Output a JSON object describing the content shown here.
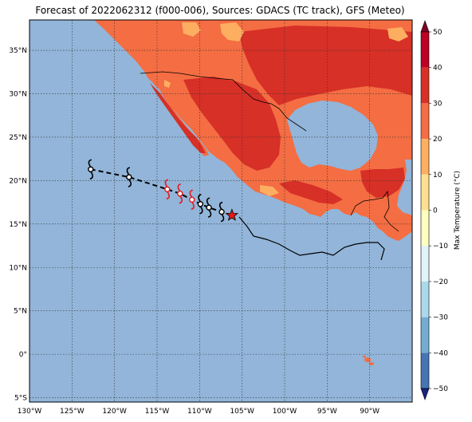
{
  "title": "Forecast of 2022062312 (f000-006), Sources: GDACS (TC track), GFS (Meteo)",
  "map": {
    "lon_range": [
      -130,
      -85
    ],
    "lat_range": [
      -5.5,
      38.5
    ],
    "lon_ticks": [
      -130,
      -125,
      -120,
      -115,
      -110,
      -105,
      -100,
      -95,
      -90
    ],
    "lon_tick_labels": [
      "130°W",
      "125°W",
      "120°W",
      "115°W",
      "110°W",
      "105°W",
      "100°W",
      "95°W",
      "90°W"
    ],
    "lat_ticks": [
      -5,
      0,
      5,
      10,
      15,
      20,
      25,
      30,
      35
    ],
    "lat_tick_labels": [
      "5°S",
      "0°",
      "5°N",
      "10°N",
      "15°N",
      "20°N",
      "25°N",
      "30°N",
      "35°N"
    ],
    "gridlines": true,
    "ocean_color": "#92b5d9"
  },
  "colorbar": {
    "label": "Max Temperature (°C)",
    "ticks": [
      50,
      40,
      30,
      20,
      10,
      0,
      -10,
      -20,
      -30,
      -40,
      -50
    ],
    "tick_labels": [
      "50",
      "40",
      "30",
      "20",
      "10",
      "0",
      "−10",
      "−20",
      "−30",
      "−40",
      "−50"
    ],
    "colors_top_to_bottom": [
      "#800026",
      "#bd0026",
      "#d73027",
      "#f46d43",
      "#fdae61",
      "#fee090",
      "#ffffbf",
      "#e0f3f8",
      "#abd9e9",
      "#74add1",
      "#4575b4",
      "#313695",
      "#1a237e"
    ]
  },
  "track": {
    "observed": {
      "lon": -106.2,
      "lat": 16.0,
      "color": "#e41a1c"
    },
    "forecast_points": [
      {
        "lon": -122.8,
        "lat": 21.3,
        "color": "#000000"
      },
      {
        "lon": -118.3,
        "lat": 20.4,
        "color": "#000000"
      },
      {
        "lon": -113.8,
        "lat": 19.0,
        "color": "#e41a1c"
      },
      {
        "lon": -112.3,
        "lat": 18.5,
        "color": "#e41a1c"
      },
      {
        "lon": -110.9,
        "lat": 17.8,
        "color": "#e41a1c"
      },
      {
        "lon": -109.9,
        "lat": 17.3,
        "color": "#000000"
      },
      {
        "lon": -108.9,
        "lat": 16.9,
        "color": "#000000"
      },
      {
        "lon": -107.4,
        "lat": 16.4,
        "color": "#000000"
      }
    ]
  },
  "land_color_hot": "#d73027",
  "land_color_warm": "#f46d43",
  "land_color_mild": "#fdae61"
}
